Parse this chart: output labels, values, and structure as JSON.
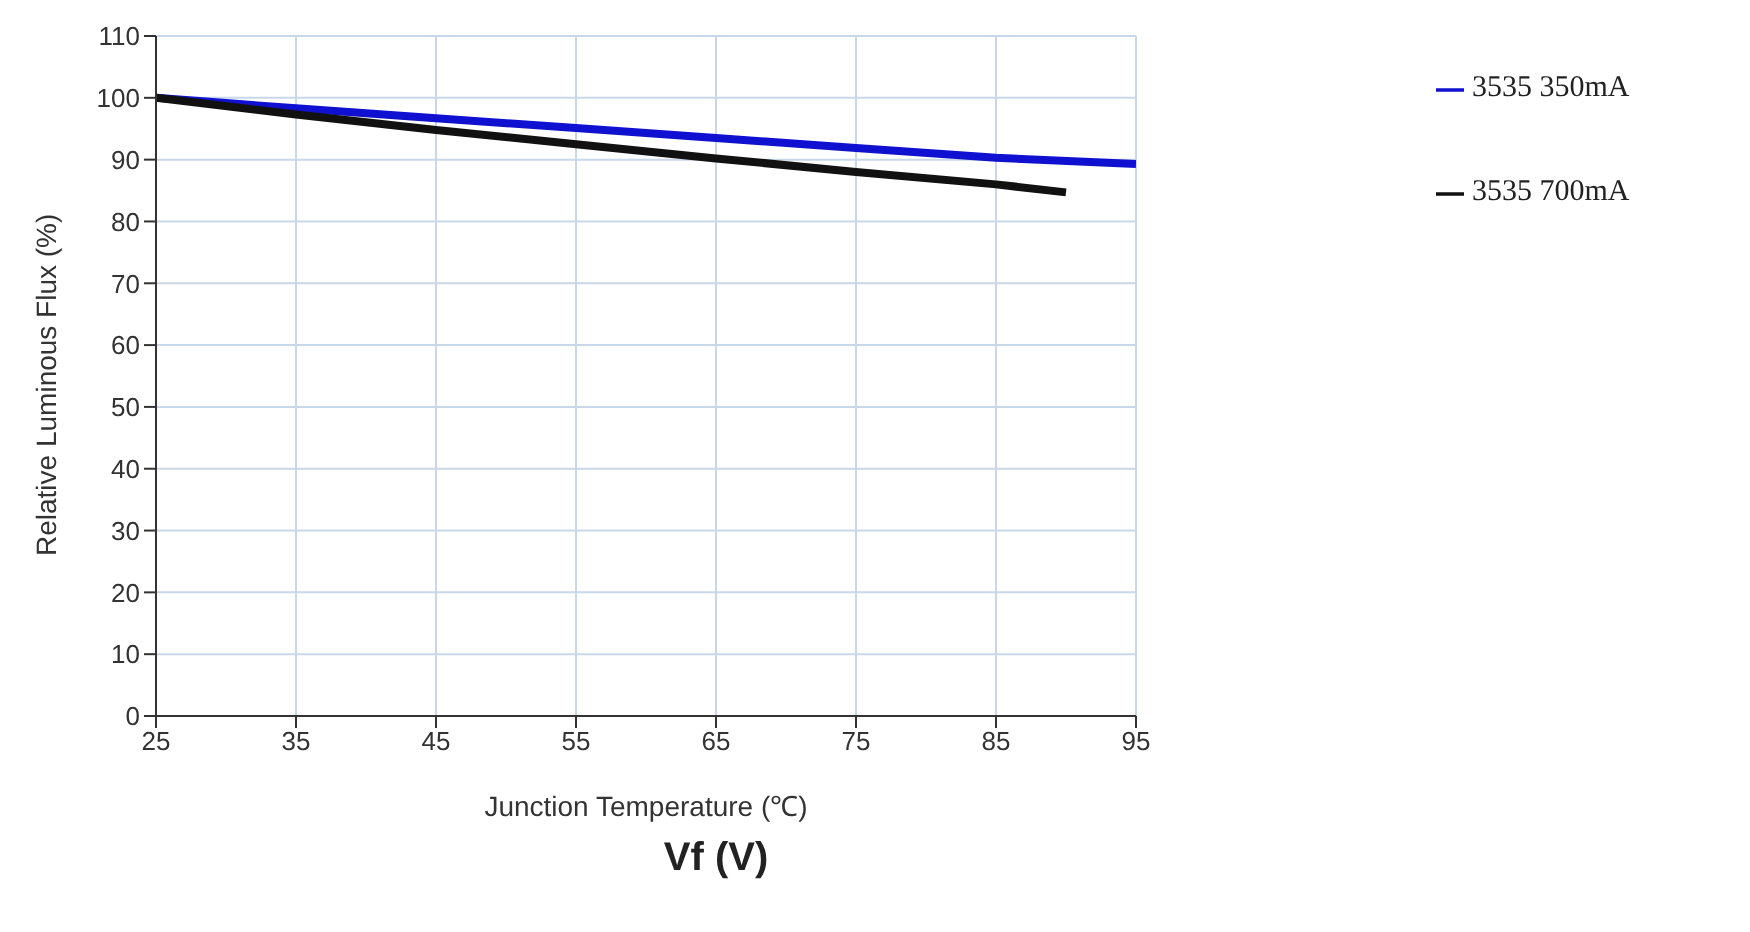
{
  "chart_data": {
    "type": "line",
    "xlabel": "Junction Temperature (℃)",
    "ylabel": "Relative Luminous Flux (%)",
    "annotations": [
      "Vf (V)"
    ],
    "x": [
      25,
      35,
      45,
      55,
      65,
      75,
      85,
      95
    ],
    "series": [
      {
        "name": "3535 350mA",
        "color": "#1010d0",
        "values": [
          100,
          98.3,
          96.7,
          95.1,
          93.5,
          91.9,
          90.3,
          89.3
        ]
      },
      {
        "name": "3535 700mA",
        "color": "#111111",
        "x": [
          25,
          35,
          45,
          55,
          65,
          75,
          85,
          90
        ],
        "values": [
          100,
          97.3,
          94.8,
          92.5,
          90.2,
          88,
          86,
          84.7
        ]
      }
    ],
    "xlim": [
      25,
      95
    ],
    "xticks": [
      25,
      35,
      45,
      55,
      65,
      75,
      85,
      95
    ],
    "ylim": [
      0,
      110
    ],
    "yticks": [
      0,
      10,
      20,
      30,
      40,
      50,
      60,
      70,
      80,
      90,
      100,
      110
    ],
    "grid": true,
    "legend": "top right",
    "marker": "none",
    "line_style": "solid"
  }
}
